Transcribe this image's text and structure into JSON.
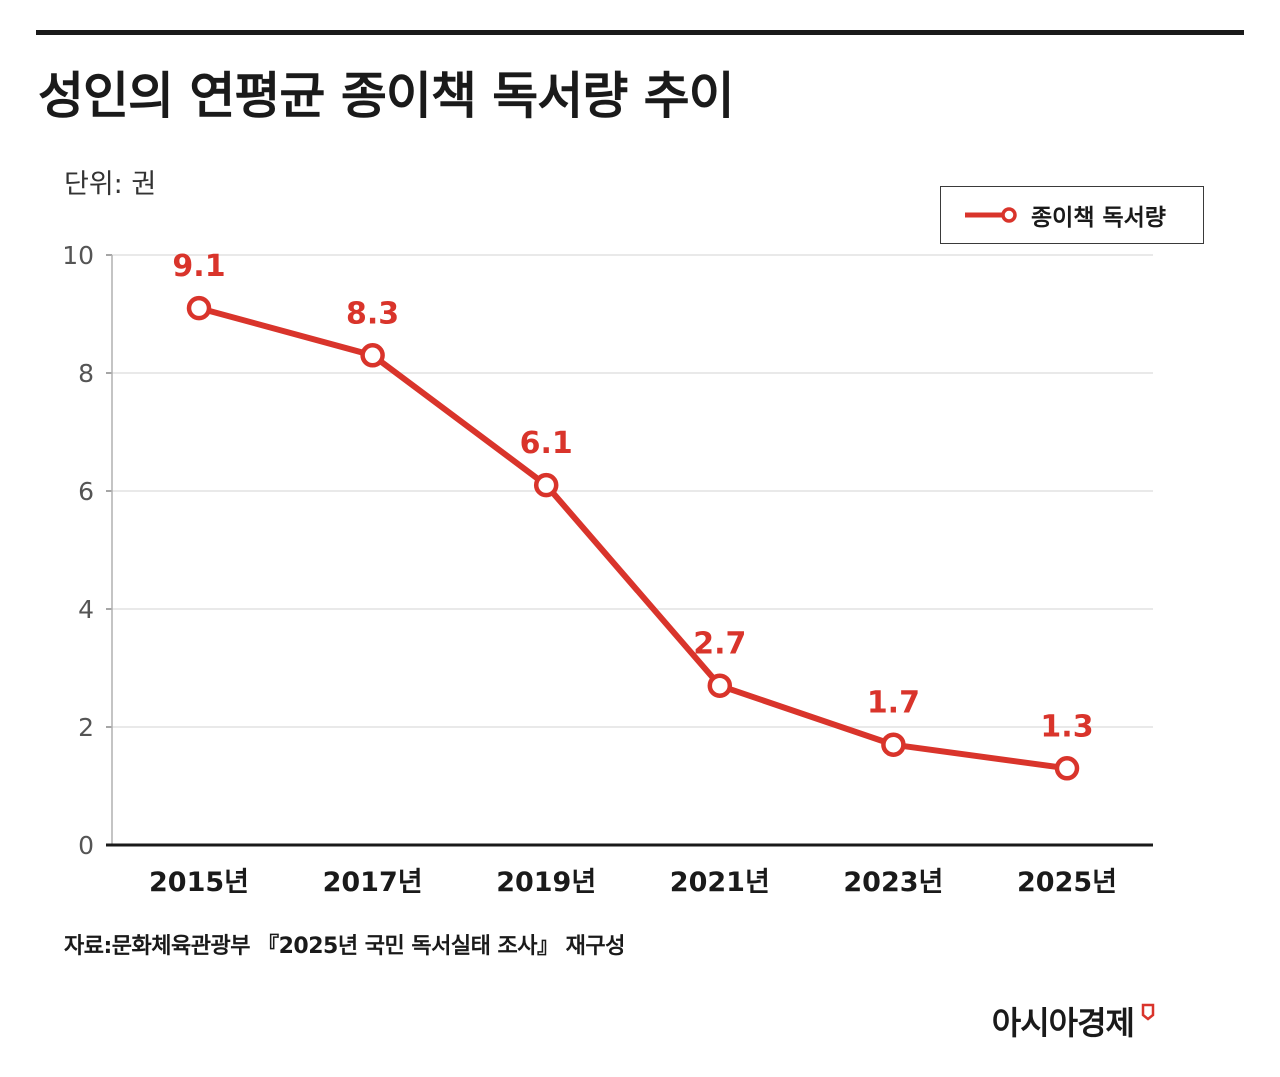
{
  "header": {
    "title": "성인의 연평균 종이책 독서량 추이",
    "unit": "단위: 권"
  },
  "legend": {
    "label": "종이책 독서량"
  },
  "footer": {
    "source": "자료:문화체육관광부 『2025년 국민 독서실태 조사』 재구성",
    "brand": "아시아경제"
  },
  "colors": {
    "accent": "#d9342b",
    "text": "#1a1a1a",
    "grid": "#e2e2e2",
    "axis": "#1a1a1a"
  },
  "chart_data": {
    "type": "line",
    "categories": [
      "2015년",
      "2017년",
      "2019년",
      "2021년",
      "2023년",
      "2025년"
    ],
    "series": [
      {
        "name": "종이책 독서량",
        "values": [
          9.1,
          8.3,
          6.1,
          2.7,
          1.7,
          1.3
        ]
      }
    ],
    "data_labels": [
      "9.1",
      "8.3",
      "6.1",
      "2.7",
      "1.7",
      "1.3"
    ],
    "ylim": [
      0,
      10
    ],
    "yticks": [
      0,
      2,
      4,
      6,
      8,
      10
    ],
    "grid": true,
    "legend_position": "top-right"
  }
}
